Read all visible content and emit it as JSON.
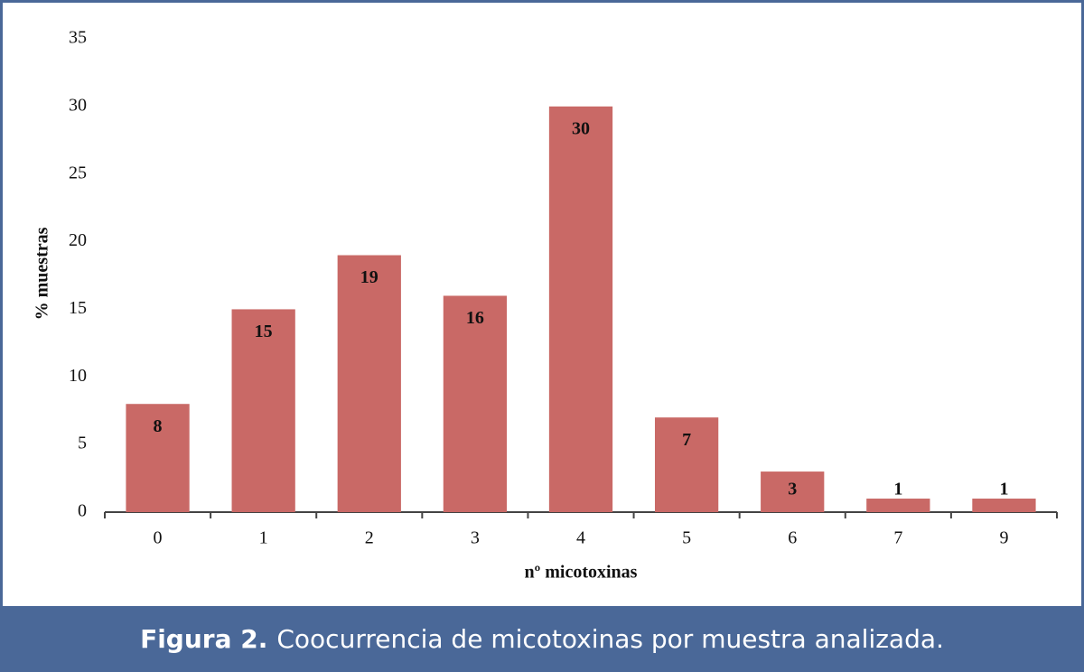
{
  "chart_data": {
    "type": "bar",
    "y_label": "% muestras",
    "x_label": "nº micotoxinas",
    "categories": [
      "0",
      "1",
      "2",
      "3",
      "4",
      "5",
      "6",
      "7",
      "9"
    ],
    "values": [
      8,
      15,
      19,
      16,
      30,
      7,
      3,
      1,
      1
    ],
    "color": "#c96966",
    "ylim": [
      0,
      35
    ],
    "yticks": [
      0,
      5,
      10,
      15,
      20,
      25,
      30,
      35
    ],
    "grid": false
  },
  "caption": {
    "label": "Figura 2.",
    "text": "Coocurrencia de micotoxinas por muestra analizada."
  }
}
